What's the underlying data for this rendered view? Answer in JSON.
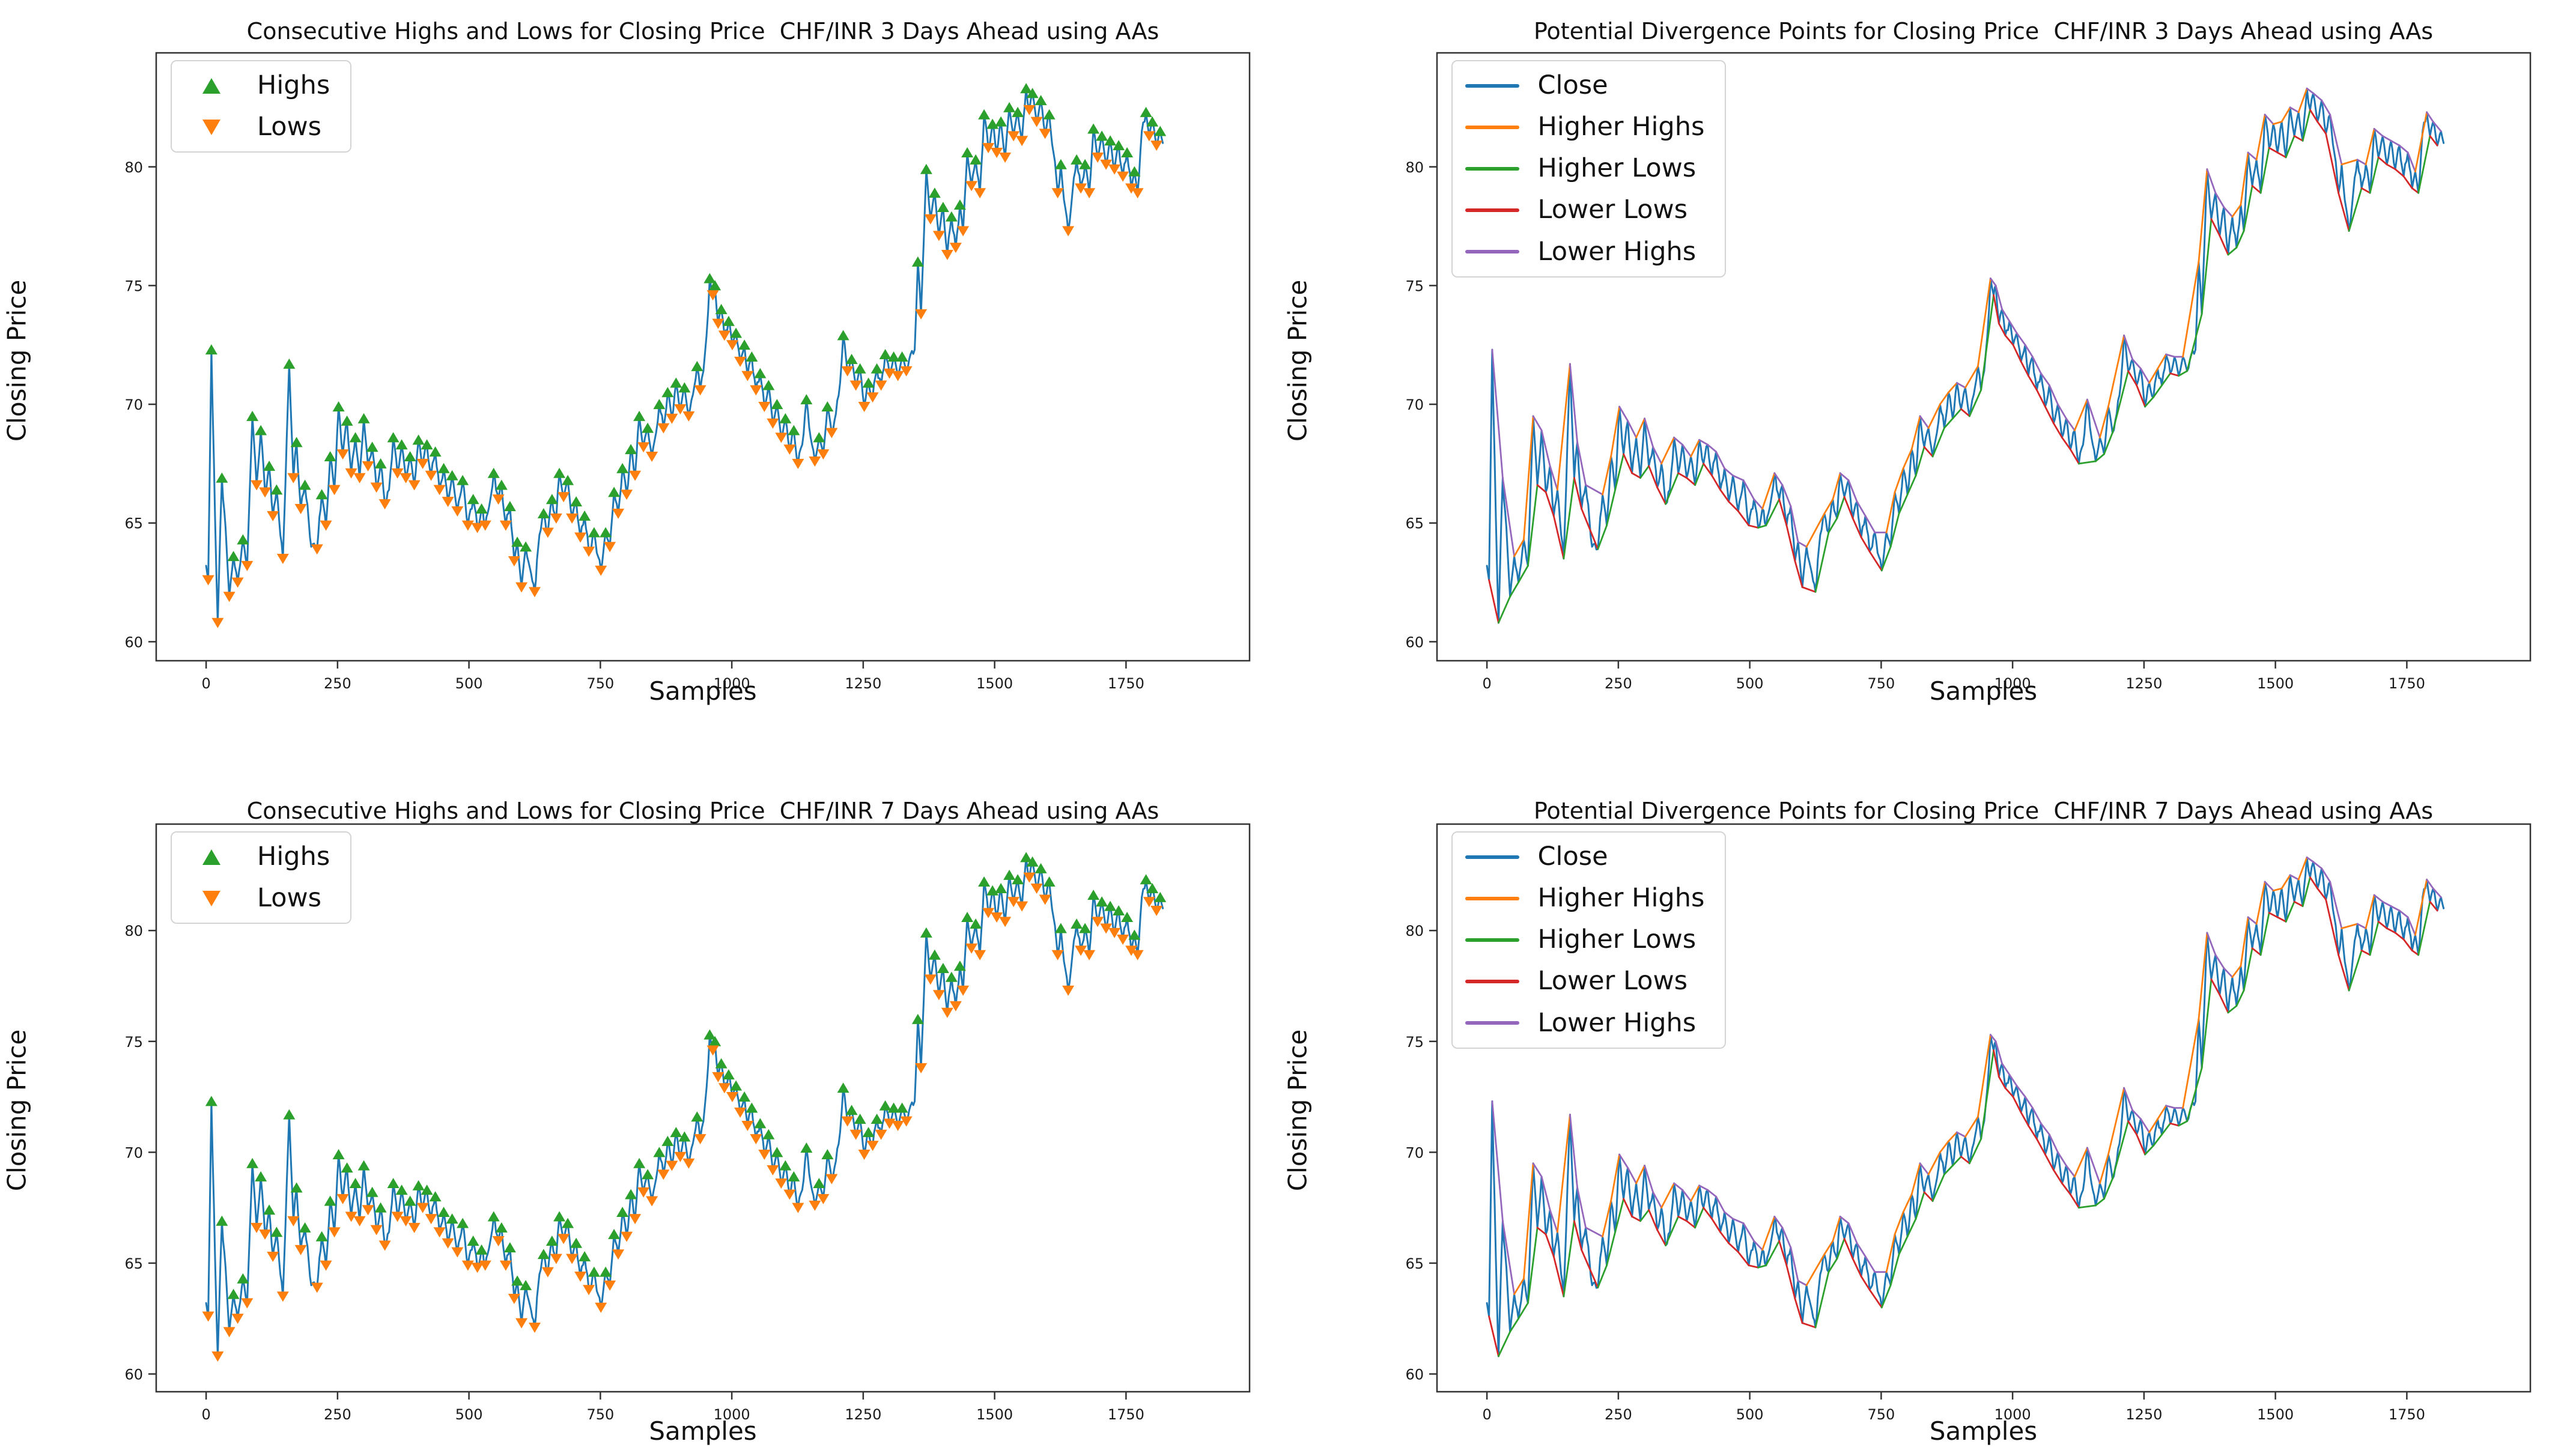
{
  "figure": {
    "background": "#ffffff"
  },
  "series": {
    "close": [
      [
        0,
        63.2
      ],
      [
        4,
        62.6
      ],
      [
        10,
        72.3
      ],
      [
        17,
        65.2
      ],
      [
        22,
        60.8
      ],
      [
        30,
        66.9
      ],
      [
        37,
        64.8
      ],
      [
        44,
        61.9
      ],
      [
        52,
        63.6
      ],
      [
        60,
        62.5
      ],
      [
        70,
        64.3
      ],
      [
        78,
        63.2
      ],
      [
        88,
        69.5
      ],
      [
        96,
        66.6
      ],
      [
        104,
        68.9
      ],
      [
        112,
        66.3
      ],
      [
        120,
        67.4
      ],
      [
        127,
        65.3
      ],
      [
        134,
        66.4
      ],
      [
        146,
        63.5
      ],
      [
        158,
        71.7
      ],
      [
        166,
        66.9
      ],
      [
        172,
        68.4
      ],
      [
        180,
        65.6
      ],
      [
        188,
        66.6
      ],
      [
        200,
        64.0
      ],
      [
        211,
        63.9
      ],
      [
        220,
        66.2
      ],
      [
        228,
        64.9
      ],
      [
        236,
        67.8
      ],
      [
        244,
        66.4
      ],
      [
        252,
        69.9
      ],
      [
        260,
        67.9
      ],
      [
        268,
        69.3
      ],
      [
        276,
        67.1
      ],
      [
        284,
        68.6
      ],
      [
        292,
        66.9
      ],
      [
        300,
        69.4
      ],
      [
        308,
        67.4
      ],
      [
        316,
        68.2
      ],
      [
        324,
        66.5
      ],
      [
        332,
        67.5
      ],
      [
        340,
        65.8
      ],
      [
        348,
        66.4
      ],
      [
        356,
        68.6
      ],
      [
        364,
        67.1
      ],
      [
        372,
        68.3
      ],
      [
        380,
        66.9
      ],
      [
        388,
        67.8
      ],
      [
        396,
        66.6
      ],
      [
        404,
        68.5
      ],
      [
        412,
        67.5
      ],
      [
        420,
        68.3
      ],
      [
        428,
        67.0
      ],
      [
        436,
        68.0
      ],
      [
        444,
        66.4
      ],
      [
        452,
        67.3
      ],
      [
        460,
        65.9
      ],
      [
        468,
        67.0
      ],
      [
        478,
        65.5
      ],
      [
        488,
        66.8
      ],
      [
        498,
        64.9
      ],
      [
        508,
        66.0
      ],
      [
        516,
        64.8
      ],
      [
        524,
        65.6
      ],
      [
        531,
        64.9
      ],
      [
        540,
        65.9
      ],
      [
        547,
        67.1
      ],
      [
        556,
        66.0
      ],
      [
        562,
        66.6
      ],
      [
        570,
        64.9
      ],
      [
        578,
        65.7
      ],
      [
        586,
        63.4
      ],
      [
        592,
        64.2
      ],
      [
        600,
        62.3
      ],
      [
        608,
        64.0
      ],
      [
        616,
        63.1
      ],
      [
        625,
        62.1
      ],
      [
        634,
        64.5
      ],
      [
        642,
        65.4
      ],
      [
        650,
        64.6
      ],
      [
        658,
        66.0
      ],
      [
        666,
        65.2
      ],
      [
        672,
        67.1
      ],
      [
        680,
        66.1
      ],
      [
        688,
        66.8
      ],
      [
        696,
        65.2
      ],
      [
        704,
        65.9
      ],
      [
        712,
        64.4
      ],
      [
        720,
        65.3
      ],
      [
        728,
        63.8
      ],
      [
        738,
        64.6
      ],
      [
        751,
        63.0
      ],
      [
        760,
        64.6
      ],
      [
        768,
        64.0
      ],
      [
        776,
        66.3
      ],
      [
        784,
        65.4
      ],
      [
        792,
        67.3
      ],
      [
        800,
        66.2
      ],
      [
        808,
        68.1
      ],
      [
        816,
        67.0
      ],
      [
        824,
        69.5
      ],
      [
        832,
        68.2
      ],
      [
        840,
        69.0
      ],
      [
        848,
        67.8
      ],
      [
        856,
        68.8
      ],
      [
        862,
        70.0
      ],
      [
        870,
        69.0
      ],
      [
        878,
        70.5
      ],
      [
        886,
        69.4
      ],
      [
        894,
        70.9
      ],
      [
        902,
        69.8
      ],
      [
        910,
        70.7
      ],
      [
        918,
        69.5
      ],
      [
        926,
        70.4
      ],
      [
        934,
        71.6
      ],
      [
        940,
        70.6
      ],
      [
        946,
        71.4
      ],
      [
        952,
        72.9
      ],
      [
        958,
        75.3
      ],
      [
        964,
        74.6
      ],
      [
        968,
        75.0
      ],
      [
        974,
        73.4
      ],
      [
        980,
        74.0
      ],
      [
        986,
        72.9
      ],
      [
        994,
        73.5
      ],
      [
        1001,
        72.5
      ],
      [
        1008,
        73.0
      ],
      [
        1016,
        71.8
      ],
      [
        1024,
        72.5
      ],
      [
        1030,
        71.2
      ],
      [
        1038,
        72.0
      ],
      [
        1046,
        70.6
      ],
      [
        1054,
        71.3
      ],
      [
        1062,
        69.9
      ],
      [
        1070,
        70.8
      ],
      [
        1078,
        69.2
      ],
      [
        1086,
        70.0
      ],
      [
        1094,
        68.6
      ],
      [
        1102,
        69.4
      ],
      [
        1110,
        68.1
      ],
      [
        1118,
        68.9
      ],
      [
        1126,
        67.5
      ],
      [
        1134,
        68.3
      ],
      [
        1142,
        70.2
      ],
      [
        1150,
        68.6
      ],
      [
        1158,
        67.6
      ],
      [
        1166,
        68.6
      ],
      [
        1174,
        67.9
      ],
      [
        1182,
        69.9
      ],
      [
        1190,
        68.8
      ],
      [
        1198,
        69.6
      ],
      [
        1206,
        70.9
      ],
      [
        1212,
        72.9
      ],
      [
        1220,
        71.4
      ],
      [
        1228,
        71.9
      ],
      [
        1236,
        70.8
      ],
      [
        1244,
        71.5
      ],
      [
        1252,
        69.9
      ],
      [
        1260,
        70.9
      ],
      [
        1268,
        70.3
      ],
      [
        1276,
        71.5
      ],
      [
        1284,
        70.8
      ],
      [
        1292,
        72.1
      ],
      [
        1300,
        71.3
      ],
      [
        1308,
        72.0
      ],
      [
        1316,
        71.2
      ],
      [
        1324,
        72.0
      ],
      [
        1332,
        71.4
      ],
      [
        1340,
        72.1
      ],
      [
        1348,
        72.3
      ],
      [
        1354,
        76.0
      ],
      [
        1360,
        73.8
      ],
      [
        1370,
        79.9
      ],
      [
        1378,
        77.8
      ],
      [
        1386,
        78.9
      ],
      [
        1394,
        77.1
      ],
      [
        1402,
        78.3
      ],
      [
        1410,
        76.3
      ],
      [
        1418,
        77.9
      ],
      [
        1426,
        76.6
      ],
      [
        1434,
        78.4
      ],
      [
        1440,
        77.3
      ],
      [
        1448,
        80.6
      ],
      [
        1456,
        79.2
      ],
      [
        1464,
        80.3
      ],
      [
        1472,
        78.9
      ],
      [
        1480,
        82.2
      ],
      [
        1488,
        80.8
      ],
      [
        1496,
        81.8
      ],
      [
        1504,
        80.6
      ],
      [
        1512,
        81.9
      ],
      [
        1520,
        80.4
      ],
      [
        1528,
        82.5
      ],
      [
        1536,
        81.3
      ],
      [
        1544,
        82.3
      ],
      [
        1552,
        81.1
      ],
      [
        1560,
        83.3
      ],
      [
        1566,
        82.4
      ],
      [
        1572,
        83.1
      ],
      [
        1580,
        81.9
      ],
      [
        1588,
        82.8
      ],
      [
        1596,
        81.4
      ],
      [
        1604,
        82.2
      ],
      [
        1612,
        80.6
      ],
      [
        1620,
        78.9
      ],
      [
        1626,
        80.1
      ],
      [
        1632,
        78.6
      ],
      [
        1640,
        77.3
      ],
      [
        1648,
        78.9
      ],
      [
        1656,
        80.3
      ],
      [
        1664,
        79.1
      ],
      [
        1672,
        80.1
      ],
      [
        1680,
        78.9
      ],
      [
        1688,
        81.6
      ],
      [
        1696,
        80.4
      ],
      [
        1704,
        81.3
      ],
      [
        1712,
        80.1
      ],
      [
        1720,
        81.1
      ],
      [
        1728,
        79.9
      ],
      [
        1736,
        80.9
      ],
      [
        1744,
        79.6
      ],
      [
        1752,
        80.6
      ],
      [
        1760,
        79.1
      ],
      [
        1766,
        79.8
      ],
      [
        1772,
        78.9
      ],
      [
        1780,
        81.5
      ],
      [
        1788,
        82.3
      ],
      [
        1794,
        81.3
      ],
      [
        1800,
        81.9
      ],
      [
        1808,
        80.9
      ],
      [
        1815,
        81.5
      ],
      [
        1820,
        81.0
      ]
    ]
  },
  "chart_data": [
    {
      "id": "consecutive-3d",
      "type": "line",
      "variant": "highs-lows-markers",
      "title": "Consecutive Highs and Lows for Closing Price  CHF/INR 3 Days Ahead using AAs",
      "xlabel": "Samples",
      "ylabel": "Closing Price",
      "xlim": [
        -95,
        1985
      ],
      "ylim": [
        59.2,
        84.8
      ],
      "xticks": [
        0,
        250,
        500,
        750,
        1000,
        1250,
        1500,
        1750
      ],
      "yticks": [
        60,
        65,
        70,
        75,
        80
      ],
      "grid": false,
      "legend_position": "upper-left",
      "series_ref": "close",
      "close_color": "#1f77b4",
      "legend": [
        {
          "label": "Highs",
          "marker": "triangle-up",
          "color": "#2ca02c"
        },
        {
          "label": "Lows",
          "marker": "triangle-down",
          "color": "#ff7f0e"
        }
      ]
    },
    {
      "id": "divergence-3d",
      "type": "line",
      "variant": "divergence",
      "title": "Potential Divergence Points for Closing Price  CHF/INR 3 Days Ahead using AAs",
      "xlabel": "Samples",
      "ylabel": "Closing Price",
      "xlim": [
        -95,
        1985
      ],
      "ylim": [
        59.2,
        84.8
      ],
      "xticks": [
        0,
        250,
        500,
        750,
        1000,
        1250,
        1500,
        1750
      ],
      "yticks": [
        60,
        65,
        70,
        75,
        80
      ],
      "grid": false,
      "legend_position": "upper-left",
      "series_ref": "close",
      "close_color": "#1f77b4",
      "legend": [
        {
          "label": "Close",
          "marker": "line",
          "color": "#1f77b4"
        },
        {
          "label": "Higher Highs",
          "marker": "line",
          "color": "#ff7f0e"
        },
        {
          "label": "Higher Lows",
          "marker": "line",
          "color": "#2ca02c"
        },
        {
          "label": "Lower Lows",
          "marker": "line",
          "color": "#d62728"
        },
        {
          "label": "Lower Highs",
          "marker": "line",
          "color": "#9467bd"
        }
      ]
    },
    {
      "id": "consecutive-7d",
      "type": "line",
      "variant": "highs-lows-markers",
      "title": "Consecutive Highs and Lows for Closing Price  CHF/INR 7 Days Ahead using AAs",
      "xlabel": "Samples",
      "ylabel": "Closing Price",
      "xlim": [
        -95,
        1985
      ],
      "ylim": [
        59.2,
        84.8
      ],
      "xticks": [
        0,
        250,
        500,
        750,
        1000,
        1250,
        1500,
        1750
      ],
      "yticks": [
        60,
        65,
        70,
        75,
        80
      ],
      "grid": false,
      "legend_position": "upper-left",
      "series_ref": "close",
      "close_color": "#1f77b4",
      "legend": [
        {
          "label": "Highs",
          "marker": "triangle-up",
          "color": "#2ca02c"
        },
        {
          "label": "Lows",
          "marker": "triangle-down",
          "color": "#ff7f0e"
        }
      ]
    },
    {
      "id": "divergence-7d",
      "type": "line",
      "variant": "divergence",
      "title": "Potential Divergence Points for Closing Price  CHF/INR 7 Days Ahead using AAs",
      "xlabel": "Samples",
      "ylabel": "Closing Price",
      "xlim": [
        -95,
        1985
      ],
      "ylim": [
        59.2,
        84.8
      ],
      "xticks": [
        0,
        250,
        500,
        750,
        1000,
        1250,
        1500,
        1750
      ],
      "yticks": [
        60,
        65,
        70,
        75,
        80
      ],
      "grid": false,
      "legend_position": "upper-left",
      "series_ref": "close",
      "close_color": "#1f77b4",
      "legend": [
        {
          "label": "Close",
          "marker": "line",
          "color": "#1f77b4"
        },
        {
          "label": "Higher Highs",
          "marker": "line",
          "color": "#ff7f0e"
        },
        {
          "label": "Higher Lows",
          "marker": "line",
          "color": "#2ca02c"
        },
        {
          "label": "Lower Lows",
          "marker": "line",
          "color": "#d62728"
        },
        {
          "label": "Lower Highs",
          "marker": "line",
          "color": "#9467bd"
        }
      ]
    }
  ]
}
